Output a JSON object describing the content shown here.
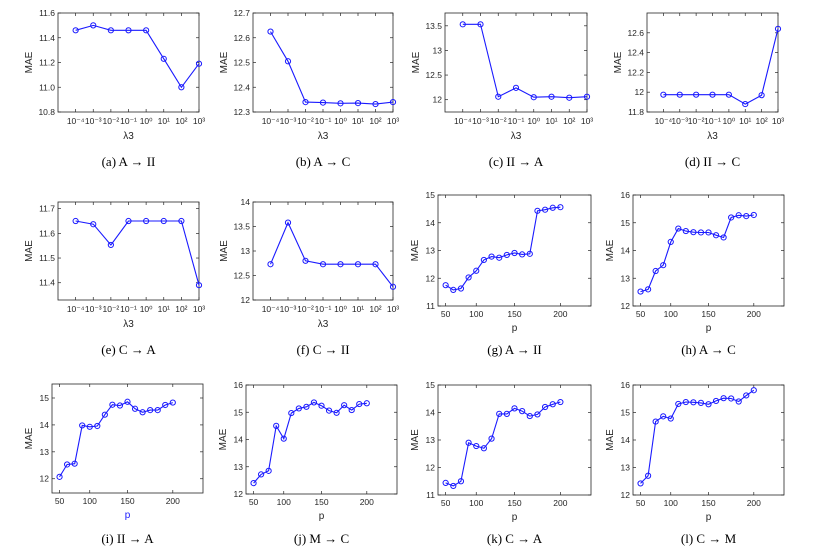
{
  "chart_data": [
    {
      "type": "line",
      "caption": "(a)  A → II",
      "xlabel": "λ3",
      "ylabel": "MAE",
      "x": [
        "10⁻⁴",
        "10⁻³",
        "10⁻²",
        "10⁻¹",
        "10⁰",
        "10¹",
        "10²",
        "10³"
      ],
      "values": [
        11.46,
        11.5,
        11.46,
        11.46,
        11.46,
        11.23,
        11.0,
        11.19
      ],
      "ylim": [
        10.8,
        11.6
      ],
      "yticks": [
        10.8,
        11.0,
        11.2,
        11.4,
        11.6
      ],
      "ytick_labels": [
        "10.8",
        "11.0",
        "11.2",
        "11.4",
        "11.6"
      ],
      "color": "#1a1aff"
    },
    {
      "type": "line",
      "caption": "(b)  A → C",
      "xlabel": "λ3",
      "ylabel": "MAE",
      "x": [
        "10⁻⁴",
        "10⁻³",
        "10⁻²",
        "10⁻¹",
        "10⁰",
        "10¹",
        "10²",
        "10³"
      ],
      "values": [
        12.625,
        12.505,
        12.34,
        12.338,
        12.335,
        12.336,
        12.332,
        12.34
      ],
      "ylim": [
        12.3,
        12.7
      ],
      "yticks": [
        12.3,
        12.4,
        12.5,
        12.6,
        12.7
      ],
      "ytick_labels": [
        "12.3",
        "12.4",
        "12.5",
        "12.6",
        "12.7"
      ],
      "color": "#1a1aff"
    },
    {
      "type": "line",
      "caption": "(c)  II → A",
      "xlabel": "λ3",
      "ylabel": "MAE",
      "x": [
        "10⁻⁴",
        "10⁻³",
        "10⁻²",
        "10⁻¹",
        "10⁰",
        "10¹",
        "10²",
        "10³"
      ],
      "values": [
        13.53,
        13.53,
        12.06,
        12.24,
        12.05,
        12.06,
        12.04,
        12.06
      ],
      "ylim": [
        11.75,
        13.76
      ],
      "yticks": [
        12,
        12.5,
        13,
        13.5
      ],
      "ytick_labels": [
        "12",
        "12.5",
        "13",
        "13.5"
      ],
      "color": "#1a1aff"
    },
    {
      "type": "line",
      "caption": "(d)  II → C",
      "xlabel": "λ3",
      "ylabel": "MAE",
      "x": [
        "10⁻⁴",
        "10⁻³",
        "10⁻²",
        "10⁻¹",
        "10⁰",
        "10¹",
        "10²",
        "10³"
      ],
      "values": [
        11.975,
        11.975,
        11.975,
        11.975,
        11.975,
        11.88,
        11.97,
        12.64
      ],
      "ylim": [
        11.8,
        12.8
      ],
      "yticks": [
        11.8,
        12.0,
        12.2,
        12.4,
        12.6
      ],
      "ytick_labels": [
        "11.8",
        "12",
        "12.2",
        "12.4",
        "12.6"
      ],
      "color": "#1a1aff"
    },
    {
      "type": "line",
      "caption": "(e)  C → A",
      "xlabel": "λ3",
      "ylabel": "MAE",
      "x": [
        "10⁻⁴",
        "10⁻³",
        "10⁻²",
        "10⁻¹",
        "10⁰",
        "10¹",
        "10²",
        "10³"
      ],
      "values": [
        11.65,
        11.637,
        11.553,
        11.65,
        11.65,
        11.65,
        11.65,
        11.39
      ],
      "ylim": [
        11.33,
        11.727
      ],
      "yticks": [
        11.4,
        11.5,
        11.6,
        11.7
      ],
      "ytick_labels": [
        "11.4",
        "11.5",
        "11.6",
        "11.7"
      ],
      "color": "#1a1aff"
    },
    {
      "type": "line",
      "caption": "(f)  C → II",
      "xlabel": "λ3",
      "ylabel": "MAE",
      "x": [
        "10⁻⁴",
        "10⁻³",
        "10⁻²",
        "10⁻¹",
        "10⁰",
        "10¹",
        "10²",
        "10³"
      ],
      "values": [
        12.73,
        13.58,
        12.8,
        12.73,
        12.73,
        12.73,
        12.73,
        12.27
      ],
      "ylim": [
        12,
        14
      ],
      "yticks": [
        12,
        12.5,
        13,
        13.5,
        14
      ],
      "ytick_labels": [
        "12",
        "12.5",
        "13",
        "13.5",
        "14"
      ],
      "color": "#1a1aff"
    },
    {
      "type": "line",
      "caption": "(g)  A → II",
      "xlabel": "p",
      "ylabel": "MAE",
      "x": [
        50,
        60,
        70,
        80,
        90,
        100,
        110,
        120,
        130,
        140,
        150,
        160,
        170,
        180,
        190,
        200
      ],
      "xtick_labels": [
        "50",
        "100",
        "150",
        "200"
      ],
      "values": [
        11.75,
        11.58,
        11.63,
        12.03,
        12.27,
        12.66,
        12.78,
        12.74,
        12.84,
        12.91,
        12.86,
        12.88,
        14.43,
        14.47,
        14.54,
        14.56
      ],
      "ylim": [
        11,
        15
      ],
      "yticks": [
        11,
        12,
        13,
        14,
        15
      ],
      "ytick_labels": [
        "11",
        "12",
        "13",
        "14",
        "15"
      ],
      "color": "#1a1aff"
    },
    {
      "type": "line",
      "caption": "(h)  A → C",
      "xlabel": "p",
      "ylabel": "MAE",
      "x": [
        50,
        60,
        70,
        80,
        90,
        100,
        110,
        120,
        130,
        140,
        150,
        160,
        170,
        180,
        190,
        200
      ],
      "xtick_labels": [
        "50",
        "100",
        "150",
        "200"
      ],
      "values": [
        12.52,
        12.6,
        13.26,
        13.47,
        14.31,
        14.79,
        14.7,
        14.66,
        14.65,
        14.65,
        14.55,
        14.47,
        15.19,
        15.27,
        15.24,
        15.28
      ],
      "ylim": [
        12,
        16
      ],
      "yticks": [
        12,
        13,
        14,
        15,
        16
      ],
      "ytick_labels": [
        "12",
        "13",
        "14",
        "15",
        "16"
      ],
      "color": "#1a1aff"
    },
    {
      "type": "line",
      "caption": "(i)  II → A",
      "xlabel": "p",
      "ylabel": "MAE",
      "x": [
        50,
        60,
        70,
        80,
        90,
        100,
        110,
        120,
        130,
        140,
        150,
        160,
        170,
        180,
        190,
        200
      ],
      "xtick_labels": [
        "50",
        "100",
        "150",
        "200"
      ],
      "values": [
        12.07,
        12.53,
        12.56,
        13.98,
        13.93,
        13.96,
        14.38,
        14.75,
        14.72,
        14.86,
        14.6,
        14.47,
        14.55,
        14.55,
        14.74,
        14.83
      ],
      "ylim": [
        11.47,
        15.52
      ],
      "yticks": [
        12,
        13,
        14,
        15
      ],
      "ytick_labels": [
        "12",
        "13",
        "14",
        "15"
      ],
      "color": "#1a1aff"
    },
    {
      "type": "line",
      "caption": "(j)  M → C",
      "xlabel": "p",
      "ylabel": "MAE",
      "x": [
        50,
        60,
        70,
        80,
        90,
        100,
        110,
        120,
        130,
        140,
        150,
        160,
        170,
        180,
        190,
        200
      ],
      "xtick_labels": [
        "50",
        "100",
        "150",
        "200"
      ],
      "values": [
        12.4,
        12.72,
        12.85,
        14.5,
        14.03,
        14.97,
        15.14,
        15.2,
        15.36,
        15.24,
        15.06,
        14.98,
        15.26,
        15.08,
        15.3,
        15.33
      ],
      "ylim": [
        12,
        16
      ],
      "yticks": [
        12,
        13,
        14,
        15,
        16
      ],
      "ytick_labels": [
        "12",
        "13",
        "14",
        "15",
        "16"
      ],
      "color": "#1a1aff"
    },
    {
      "type": "line",
      "caption": "(k)  C → A",
      "xlabel": "p",
      "ylabel": "MAE",
      "x": [
        50,
        60,
        70,
        80,
        90,
        100,
        110,
        120,
        130,
        140,
        150,
        160,
        170,
        180,
        190,
        200
      ],
      "xtick_labels": [
        "50",
        "100",
        "150",
        "200"
      ],
      "values": [
        11.44,
        11.33,
        11.5,
        12.9,
        12.78,
        12.7,
        13.05,
        13.95,
        13.95,
        14.15,
        14.05,
        13.87,
        13.93,
        14.2,
        14.3,
        14.38
      ],
      "ylim": [
        11,
        15
      ],
      "yticks": [
        11,
        12,
        13,
        14,
        15
      ],
      "ytick_labels": [
        "11",
        "12",
        "13",
        "14",
        "15"
      ],
      "color": "#1a1aff"
    },
    {
      "type": "line",
      "caption": "(l)  C → M",
      "xlabel": "p",
      "ylabel": "MAE",
      "x": [
        50,
        60,
        70,
        80,
        90,
        100,
        110,
        120,
        130,
        140,
        150,
        160,
        170,
        180,
        190,
        200
      ],
      "xtick_labels": [
        "50",
        "100",
        "150",
        "200"
      ],
      "values": [
        12.42,
        12.7,
        14.67,
        14.86,
        14.78,
        15.31,
        15.38,
        15.37,
        15.35,
        15.3,
        15.42,
        15.52,
        15.51,
        15.4,
        15.62,
        15.81
      ],
      "ylim": [
        12,
        16
      ],
      "yticks": [
        12,
        13,
        14,
        15,
        16
      ],
      "ytick_labels": [
        "12",
        "13",
        "14",
        "15",
        "16"
      ],
      "color": "#1a1aff"
    }
  ]
}
